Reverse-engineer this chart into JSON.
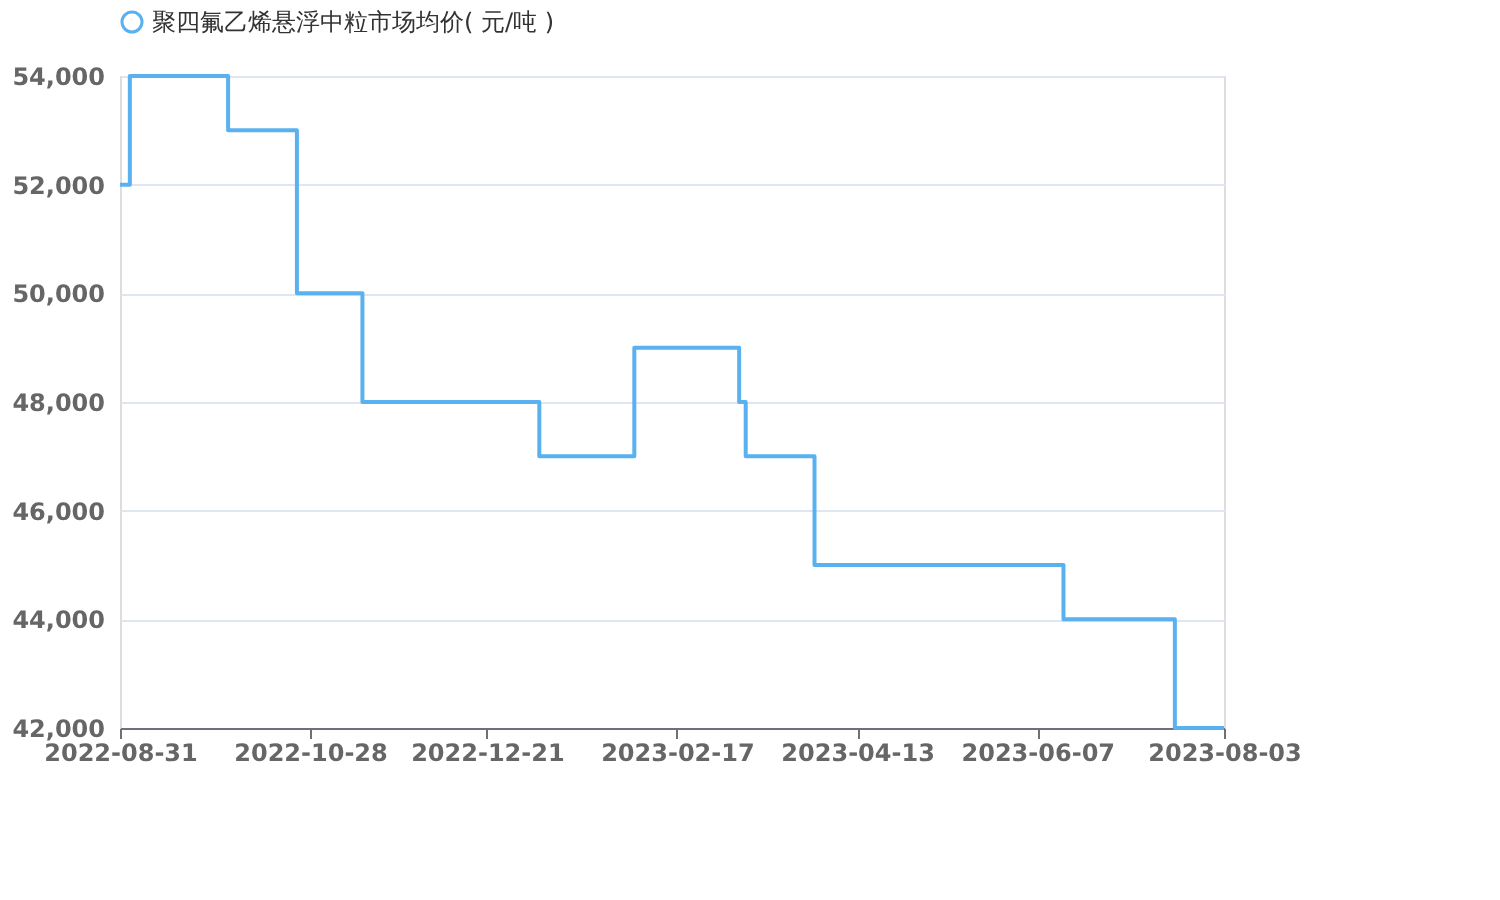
{
  "chart_data": {
    "type": "step",
    "x": [
      "2022-08-31",
      "2022-09-03",
      "2022-10-03",
      "2022-10-24",
      "2022-11-13",
      "2023-01-06",
      "2023-02-04",
      "2023-03-08",
      "2023-03-10",
      "2023-03-31",
      "2023-06-15",
      "2023-07-19",
      "2023-08-03"
    ],
    "series": [
      {
        "name": "聚四氟乙烯悬浮中粒市场均价( 元/吨 )",
        "color": "#5ab1ef",
        "values": [
          52000,
          54000,
          53000,
          50000,
          48000,
          47000,
          49000,
          48000,
          47000,
          45000,
          44000,
          42000,
          42000
        ]
      }
    ],
    "xlim": [
      "2022-08-31",
      "2023-08-03"
    ],
    "xticks": [
      "2022-08-31",
      "2022-10-28",
      "2022-12-21",
      "2023-02-17",
      "2023-04-13",
      "2023-06-07",
      "2023-08-03"
    ],
    "ylim": [
      42000,
      54000
    ],
    "yticks": [
      {
        "value": 42000,
        "label": "42,000"
      },
      {
        "value": 44000,
        "label": "44,000"
      },
      {
        "value": 46000,
        "label": "46,000"
      },
      {
        "value": 48000,
        "label": "48,000"
      },
      {
        "value": 50000,
        "label": "50,000"
      },
      {
        "value": 52000,
        "label": "52,000"
      },
      {
        "value": 54000,
        "label": "54,000"
      }
    ],
    "grid": "y",
    "legend": "top",
    "marker": "none",
    "line_style": "solid"
  }
}
